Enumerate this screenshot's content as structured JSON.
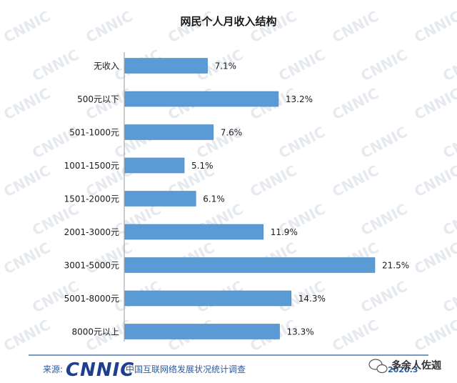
{
  "chart_data": {
    "type": "bar",
    "orientation": "horizontal",
    "title": "网民个人月收入结构",
    "categories": [
      "无收入",
      "500元以下",
      "501-1000元",
      "1001-1500元",
      "1501-2000元",
      "2001-3000元",
      "3001-5000元",
      "5001-8000元",
      "8000元以上"
    ],
    "values": [
      7.1,
      13.2,
      7.6,
      5.1,
      6.1,
      11.9,
      21.5,
      14.3,
      13.3
    ],
    "value_labels": [
      "7.1%",
      "13.2%",
      "7.6%",
      "5.1%",
      "6.1%",
      "11.9%",
      "21.5%",
      "14.3%",
      "13.3%"
    ],
    "xlim": [
      0,
      21.5
    ],
    "bar_color": "#5b9bd5",
    "grid": false,
    "legend": "none"
  },
  "footer": {
    "source_label": "来源:",
    "logo_text": "CNNIC",
    "org_name": "中国互联网络发展状况统计调查",
    "date": "2020.3",
    "account": "多余人佐迦"
  },
  "watermark_text": "CNNIC",
  "colors": {
    "title": "#1a1a1a",
    "logo": "#1e3f8f",
    "footer_line": "#2b5a9e"
  }
}
